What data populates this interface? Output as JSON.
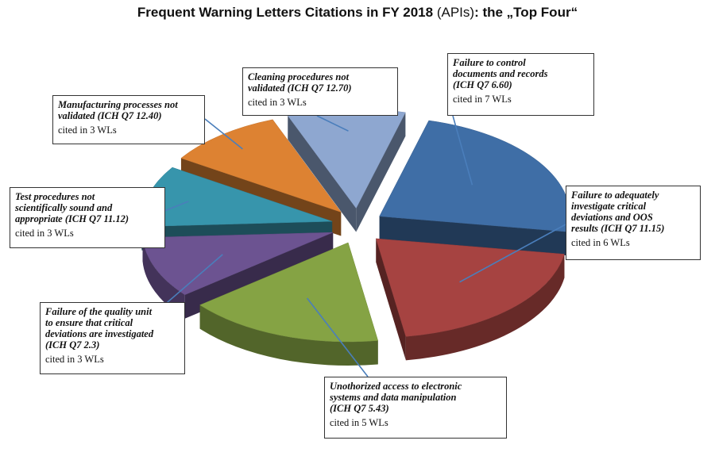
{
  "title": {
    "main": "Frequent Warning Letters Citations in FY 2018",
    "paren": "(APIs)",
    "tail": ": the „Top Four“"
  },
  "chart_data": {
    "type": "pie",
    "title": "Frequent Warning Letters Citations in FY 2018 (APIs): the „Top Four“",
    "style": "3D exploded pie",
    "slices": [
      {
        "label": "Failure to control documents and records (ICH Q7 6.60)",
        "value": 7,
        "count_text": "cited in 7 WLs",
        "color": "#3f6ea6"
      },
      {
        "label": "Failure to adequately investigate critical deviations and OOS results (ICH Q7 11.15)",
        "value": 6,
        "count_text": "cited in 6 WLs",
        "color": "#a64341"
      },
      {
        "label": "Unothorized access to electronic systems and data manipulation (ICH Q7 5.43)",
        "value": 5,
        "count_text": "cited in 5 WLs",
        "color": "#85a344"
      },
      {
        "label": "Failure of the quality unit to ensure that critical deviations are investigated (ICH Q7 2.3)",
        "value": 3,
        "count_text": "cited in 3 WLs",
        "color": "#6c5391"
      },
      {
        "label": "Test procedures not scientifically sound and appropriate (ICH Q7 11.12)",
        "value": 3,
        "count_text": "cited in 3 WLs",
        "color": "#3795ac"
      },
      {
        "label": "Manufacturing processes not validated (ICH Q7 12.40)",
        "value": 3,
        "count_text": "cited in 3 WLs",
        "color": "#dd8232"
      },
      {
        "label": "Cleaning procedures not validated (ICH Q7 12.70)",
        "value": 3,
        "count_text": "cited in 3 WLs",
        "color": "#8ea7d0"
      }
    ]
  },
  "callouts": [
    {
      "label": "Failure to control\ndocuments and records\n(ICH Q7 6.60)",
      "count": "cited in 7 WLs"
    },
    {
      "label": "Failure to adequately\ninvestigate critical\ndeviations and OOS\nresults (ICH Q7 11.15)",
      "count": "cited in 6 WLs"
    },
    {
      "label": "Unothorized access to electronic\nsystems and data manipulation\n(ICH Q7 5.43)",
      "count": "cited in 5 WLs"
    },
    {
      "label": "Failure of the quality unit\nto ensure that critical\ndeviations are investigated\n(ICH Q7 2.3)",
      "count": "cited in 3 WLs"
    },
    {
      "label": "Test procedures not\nscientifically sound and\nappropriate  (ICH Q7 11.12)",
      "count": "cited in 3 WLs"
    },
    {
      "label": "Manufacturing processes not\nvalidated  (ICH Q7 12.40)",
      "count": "cited in 3 WLs"
    },
    {
      "label": "Cleaning procedures not\nvalidated  (ICH Q7 12.70)",
      "count": "cited in 3 WLs"
    }
  ]
}
